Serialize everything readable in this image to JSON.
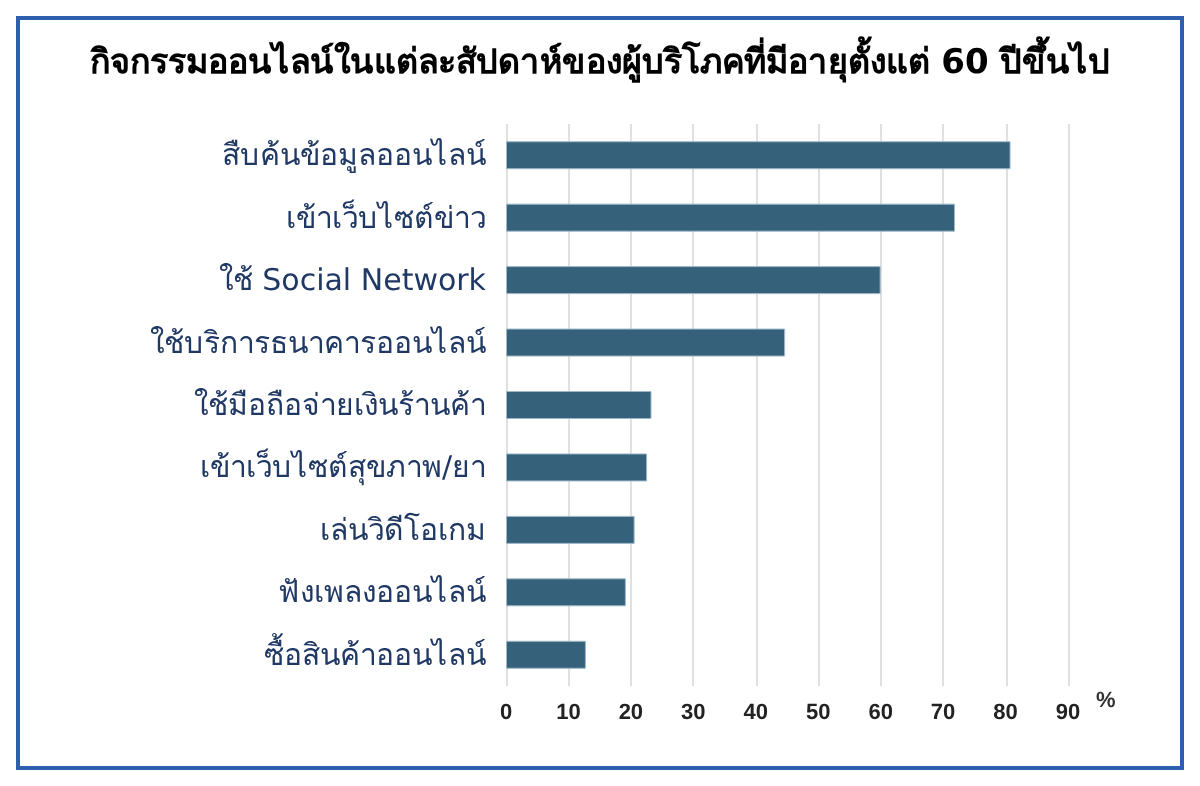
{
  "chart_data": {
    "type": "bar",
    "orientation": "horizontal",
    "title": "กิจกรรมออนไลน์ในแต่ละสัปดาห์ของผู้บริโภคที่มีอายุตั้งแต่ 60 ปีขึ้นไป",
    "xlabel": "%",
    "categories": [
      "สืบค้นข้อมูลออนไลน์",
      "เข้าเว็บไซต์ข่าว",
      "ใช้ Social Network",
      "ใช้บริการธนาคารออนไลน์",
      "ใช้มือถือจ่ายเงินร้านค้า",
      "เข้าเว็บไซต์สุขภาพ/ยา",
      "เล่นวิดีโอเกม",
      "ฟังเพลงออนไลน์",
      "ซื้อสินค้าออนไลน์"
    ],
    "values": [
      80.8,
      71.9,
      60.0,
      44.7,
      23.3,
      22.6,
      20.6,
      19.2,
      12.8
    ],
    "color": "#35627a",
    "xlim": [
      0,
      90
    ],
    "xticks": [
      0,
      10,
      20,
      30,
      40,
      50,
      60,
      70,
      80,
      90
    ],
    "grid": "x"
  }
}
